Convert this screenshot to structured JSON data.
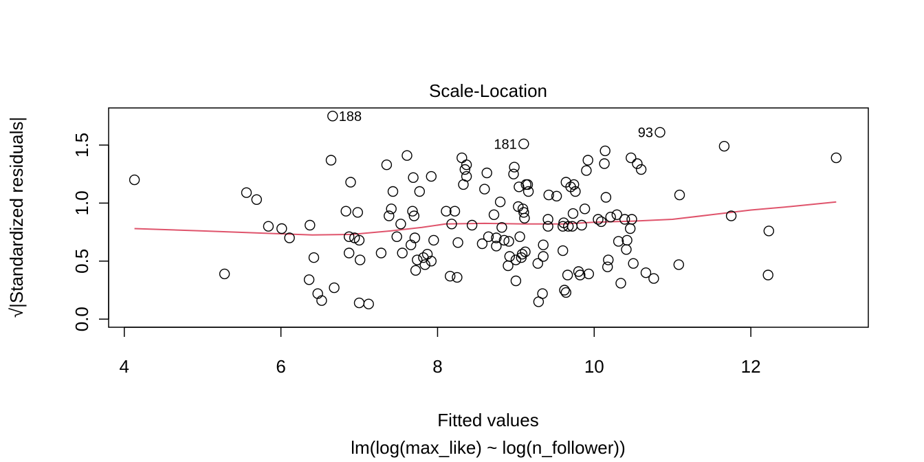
{
  "chart_data": {
    "type": "scatter",
    "title": "Scale-Location",
    "xlabel": "Fitted values",
    "sublabel": "lm(log(max_like) ~ log(n_follower))",
    "ylabel": "√|Standardized residuals|",
    "xlim": [
      3.8,
      13.5
    ],
    "ylim": [
      -0.07,
      1.82
    ],
    "xticks": [
      4,
      6,
      8,
      10,
      12
    ],
    "xtick_labels": [
      "4",
      "6",
      "8",
      "10",
      "12"
    ],
    "yticks": [
      0.0,
      0.5,
      1.0,
      1.5
    ],
    "ytick_labels": [
      "0.0",
      "0.5",
      "1.0",
      "1.5"
    ],
    "colors": {
      "points": "#000000",
      "smooth": "#DF536B",
      "frame": "#000000"
    },
    "points": [
      [
        4.13,
        1.2
      ],
      [
        5.28,
        0.39
      ],
      [
        5.56,
        1.09
      ],
      [
        5.69,
        1.03
      ],
      [
        5.84,
        0.8
      ],
      [
        6.01,
        0.78
      ],
      [
        6.11,
        0.7
      ],
      [
        6.36,
        0.34
      ],
      [
        6.37,
        0.81
      ],
      [
        6.42,
        0.53
      ],
      [
        6.47,
        0.22
      ],
      [
        6.52,
        0.16
      ],
      [
        6.64,
        1.37
      ],
      [
        6.68,
        0.27
      ],
      [
        6.83,
        0.93
      ],
      [
        6.87,
        0.57
      ],
      [
        6.87,
        0.71
      ],
      [
        6.89,
        1.18
      ],
      [
        6.94,
        0.7
      ],
      [
        6.98,
        0.92
      ],
      [
        7.0,
        0.68
      ],
      [
        7.0,
        0.14
      ],
      [
        7.01,
        0.51
      ],
      [
        7.12,
        0.13
      ],
      [
        7.28,
        0.57
      ],
      [
        7.35,
        1.33
      ],
      [
        7.38,
        0.89
      ],
      [
        7.41,
        0.95
      ],
      [
        7.43,
        1.1
      ],
      [
        7.48,
        0.71
      ],
      [
        7.53,
        0.82
      ],
      [
        7.55,
        0.57
      ],
      [
        7.61,
        1.41
      ],
      [
        7.66,
        0.64
      ],
      [
        7.68,
        0.93
      ],
      [
        7.69,
        1.22
      ],
      [
        7.7,
        0.89
      ],
      [
        7.71,
        0.7
      ],
      [
        7.72,
        0.42
      ],
      [
        7.74,
        0.51
      ],
      [
        7.77,
        1.1
      ],
      [
        7.82,
        0.53
      ],
      [
        7.84,
        0.47
      ],
      [
        7.87,
        0.56
      ],
      [
        7.92,
        1.23
      ],
      [
        7.92,
        0.5
      ],
      [
        7.95,
        0.68
      ],
      [
        8.11,
        0.93
      ],
      [
        8.16,
        0.37
      ],
      [
        8.18,
        0.82
      ],
      [
        8.22,
        0.93
      ],
      [
        8.25,
        0.36
      ],
      [
        8.26,
        0.66
      ],
      [
        8.31,
        1.39
      ],
      [
        8.33,
        1.16
      ],
      [
        8.35,
        1.29
      ],
      [
        8.37,
        1.33
      ],
      [
        8.37,
        1.23
      ],
      [
        8.44,
        0.81
      ],
      [
        8.57,
        0.65
      ],
      [
        8.6,
        1.12
      ],
      [
        8.63,
        1.26
      ],
      [
        8.65,
        0.71
      ],
      [
        8.72,
        0.9
      ],
      [
        8.75,
        0.63
      ],
      [
        8.75,
        0.7
      ],
      [
        8.8,
        1.01
      ],
      [
        8.82,
        0.79
      ],
      [
        8.85,
        0.68
      ],
      [
        8.9,
        0.46
      ],
      [
        8.91,
        0.67
      ],
      [
        8.92,
        0.54
      ],
      [
        8.97,
        1.25
      ],
      [
        8.98,
        1.31
      ],
      [
        9.0,
        0.33
      ],
      [
        9.0,
        0.51
      ],
      [
        9.03,
        0.97
      ],
      [
        9.04,
        1.14
      ],
      [
        9.05,
        0.71
      ],
      [
        9.07,
        0.53
      ],
      [
        9.08,
        0.56
      ],
      [
        9.09,
        0.95
      ],
      [
        9.1,
        0.92
      ],
      [
        9.11,
        0.87
      ],
      [
        9.12,
        0.58
      ],
      [
        9.13,
        1.16
      ],
      [
        9.15,
        1.16
      ],
      [
        9.16,
        1.1
      ],
      [
        9.28,
        0.48
      ],
      [
        9.29,
        0.15
      ],
      [
        9.34,
        0.22
      ],
      [
        9.35,
        0.64
      ],
      [
        9.35,
        0.54
      ],
      [
        9.41,
        0.8
      ],
      [
        9.41,
        0.86
      ],
      [
        9.42,
        1.07
      ],
      [
        9.52,
        1.06
      ],
      [
        9.6,
        0.59
      ],
      [
        9.6,
        0.8
      ],
      [
        9.61,
        0.83
      ],
      [
        9.62,
        0.25
      ],
      [
        9.64,
        0.23
      ],
      [
        9.64,
        1.18
      ],
      [
        9.66,
        0.38
      ],
      [
        9.67,
        0.8
      ],
      [
        9.7,
        1.14
      ],
      [
        9.72,
        0.8
      ],
      [
        9.73,
        0.91
      ],
      [
        9.74,
        1.16
      ],
      [
        9.76,
        1.1
      ],
      [
        9.8,
        0.41
      ],
      [
        9.82,
        0.38
      ],
      [
        9.84,
        0.81
      ],
      [
        9.88,
        0.95
      ],
      [
        9.9,
        1.28
      ],
      [
        9.92,
        1.37
      ],
      [
        9.93,
        0.39
      ],
      [
        10.05,
        0.86
      ],
      [
        10.09,
        0.84
      ],
      [
        10.13,
        1.34
      ],
      [
        10.14,
        1.45
      ],
      [
        10.15,
        1.05
      ],
      [
        10.17,
        0.45
      ],
      [
        10.18,
        0.51
      ],
      [
        10.21,
        0.88
      ],
      [
        10.29,
        0.9
      ],
      [
        10.31,
        0.67
      ],
      [
        10.34,
        0.31
      ],
      [
        10.39,
        0.86
      ],
      [
        10.41,
        0.6
      ],
      [
        10.42,
        0.68
      ],
      [
        10.46,
        0.78
      ],
      [
        10.47,
        1.39
      ],
      [
        10.48,
        0.86
      ],
      [
        10.5,
        0.48
      ],
      [
        10.55,
        1.34
      ],
      [
        10.6,
        1.29
      ],
      [
        10.66,
        0.4
      ],
      [
        10.76,
        0.35
      ],
      [
        11.08,
        0.47
      ],
      [
        11.09,
        1.07
      ],
      [
        11.66,
        1.49
      ],
      [
        11.75,
        0.89
      ],
      [
        12.22,
        0.38
      ],
      [
        12.23,
        0.76
      ],
      [
        13.09,
        1.39
      ]
    ],
    "labeled_points": [
      {
        "id": "188",
        "x": 6.66,
        "y": 1.75,
        "pos": "right"
      },
      {
        "id": "181",
        "x": 9.1,
        "y": 1.51,
        "pos": "left"
      },
      {
        "id": "93",
        "x": 10.84,
        "y": 1.61,
        "pos": "left"
      }
    ],
    "smooth": {
      "x": [
        4.13,
        5.0,
        5.8,
        6.4,
        6.9,
        7.4,
        7.8,
        8.1,
        8.6,
        9.1,
        9.6,
        10.0,
        10.5,
        11.0,
        11.5,
        12.0,
        12.5,
        13.09
      ],
      "y": [
        0.78,
        0.76,
        0.74,
        0.725,
        0.73,
        0.76,
        0.79,
        0.82,
        0.825,
        0.82,
        0.82,
        0.835,
        0.845,
        0.86,
        0.9,
        0.94,
        0.97,
        1.01
      ]
    }
  }
}
